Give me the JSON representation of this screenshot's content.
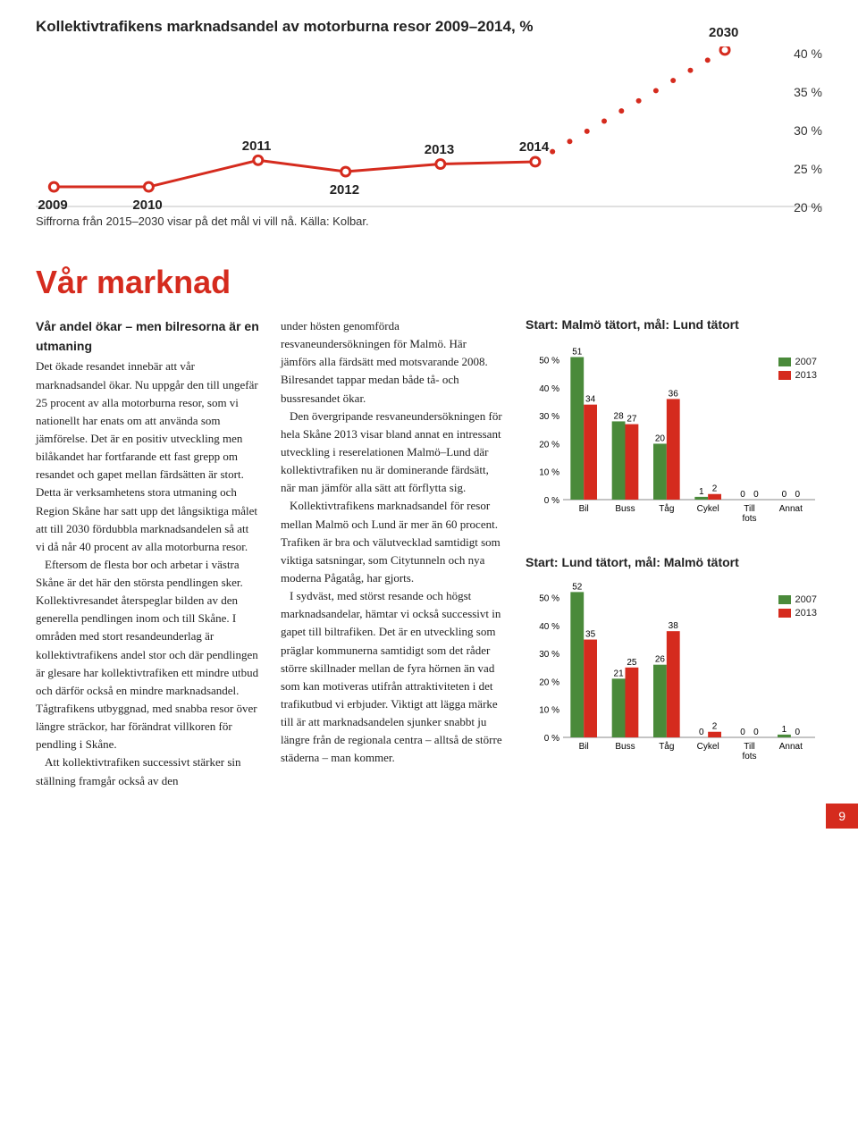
{
  "line_chart": {
    "title": "Kollektivtrafikens marknadsandel av motorburna resor 2009–2014, %",
    "caption": "Siffrorna från 2015–2030 visar på det mål vi vill nå. Källa: Kolbar.",
    "line_color": "#d52b1e",
    "marker_fill": "#ffffff",
    "marker_stroke": "#d52b1e",
    "y_ticks": [
      "40 %",
      "35 %",
      "30 %",
      "25 %",
      "20 %"
    ],
    "x_labels": [
      {
        "label": "2009",
        "x": 2,
        "y": 22
      },
      {
        "label": "2010",
        "x": 15,
        "y": 22
      },
      {
        "label": "2011",
        "x": 30,
        "y": 25.5
      },
      {
        "label": "2012",
        "x": 42,
        "y": 24
      },
      {
        "label": "2013",
        "x": 55,
        "y": 25
      },
      {
        "label": "2014",
        "x": 68,
        "y": 25.3
      },
      {
        "label": "2030",
        "x": 94,
        "y": 40
      }
    ],
    "projection_end": {
      "x": 94,
      "y": 40
    },
    "projection_dots": 11,
    "y_min": 20,
    "y_max": 40
  },
  "section": {
    "title": "Vår marknad",
    "subhead": "Vår andel ökar – men bilresorna är en utmaning",
    "col_a": [
      "Det ökade resandet innebär att vår marknadsandel ökar. Nu uppgår den till ungefär 25 procent av alla motorburna resor, som vi nationellt har enats om att använda som jämförelse. Det är en positiv utveckling men bilåkandet har fortfarande ett fast grepp om resandet och gapet mellan färdsätten är stort. Detta är verksamhetens stora utmaning och Region Skåne har satt upp det långsiktiga målet att till 2030 fördubbla marknadsandelen så att vi då når 40 procent av alla motorburna resor.",
      "Eftersom de flesta bor och arbetar i västra Skåne är det här den största pendlingen sker. Kollektivresandet återspeglar bilden av den generella pendlingen inom och till Skåne. I områden med stort resandeunderlag är kollektivtrafikens andel stor och där pendlingen är glesare har kollektivtrafiken ett mindre utbud och därför också en mindre marknadsandel. Tågtrafikens utbyggnad, med snabba resor över längre sträckor, har förändrat villkoren för pendling i Skåne.",
      "Att kollektivtrafiken successivt stärker sin ställning framgår också av den"
    ],
    "col_b": [
      "under hösten genomförda resvaneundersökningen för Malmö. Här jämförs alla färdsätt med motsvarande 2008. Bilresandet tappar medan både tå- och bussresandet ökar.",
      "Den övergripande resvaneundersökningen för hela Skåne 2013 visar bland annat en intressant utveckling i reserelationen Malmö–Lund där kollektivtrafiken nu är dominerande färdsätt, när man jämför alla sätt att förflytta sig.",
      "Kollektivtrafikens marknadsandel för resor mellan Malmö och Lund är mer än 60 procent. Trafiken är bra och välutvecklad samtidigt som viktiga satsningar, som Citytunneln och nya moderna Pågatåg, har gjorts.",
      "I sydväst, med störst resande och högst marknadsandelar, hämtar vi också successivt in gapet till biltrafiken. Det är en utveckling som präglar kommunerna samtidigt som det råder större skillnader mellan de fyra hörnen än vad som kan motiveras utifrån attraktiviteten i det trafikutbud vi erbjuder. Viktigt att lägga märke till är att marknadsandelen sjunker snabbt ju längre från de regionala centra – alltså de större städerna – man kommer."
    ]
  },
  "bar_charts": {
    "colors": {
      "s2007": "#4a8a3a",
      "s2013": "#d52b1e"
    },
    "legend": [
      {
        "label": "2007",
        "color": "#4a8a3a"
      },
      {
        "label": "2013",
        "color": "#d52b1e"
      }
    ],
    "y_ticks": [
      "50 %",
      "40 %",
      "30 %",
      "20 %",
      "10 %",
      "0 %"
    ],
    "y_max": 55,
    "categories": [
      "Bil",
      "Buss",
      "Tåg",
      "Cykel",
      "Till fots",
      "Annat"
    ],
    "chart1": {
      "title": "Start: Malmö tätort, mål: Lund tätort",
      "data": [
        {
          "v2007": 51,
          "v2013": 34
        },
        {
          "v2007": 28,
          "v2013": 27
        },
        {
          "v2007": 20,
          "v2013": 36
        },
        {
          "v2007": 1,
          "v2013": 2
        },
        {
          "v2007": 0,
          "v2013": 0
        },
        {
          "v2007": 0,
          "v2013": 0
        }
      ]
    },
    "chart2": {
      "title": "Start: Lund tätort, mål: Malmö tätort",
      "data": [
        {
          "v2007": 52,
          "v2013": 35
        },
        {
          "v2007": 21,
          "v2013": 25
        },
        {
          "v2007": 26,
          "v2013": 38
        },
        {
          "v2007": 0,
          "v2013": 2
        },
        {
          "v2007": 0,
          "v2013": 0
        },
        {
          "v2007": 1,
          "v2013": 0
        }
      ]
    }
  },
  "page_number": "9"
}
